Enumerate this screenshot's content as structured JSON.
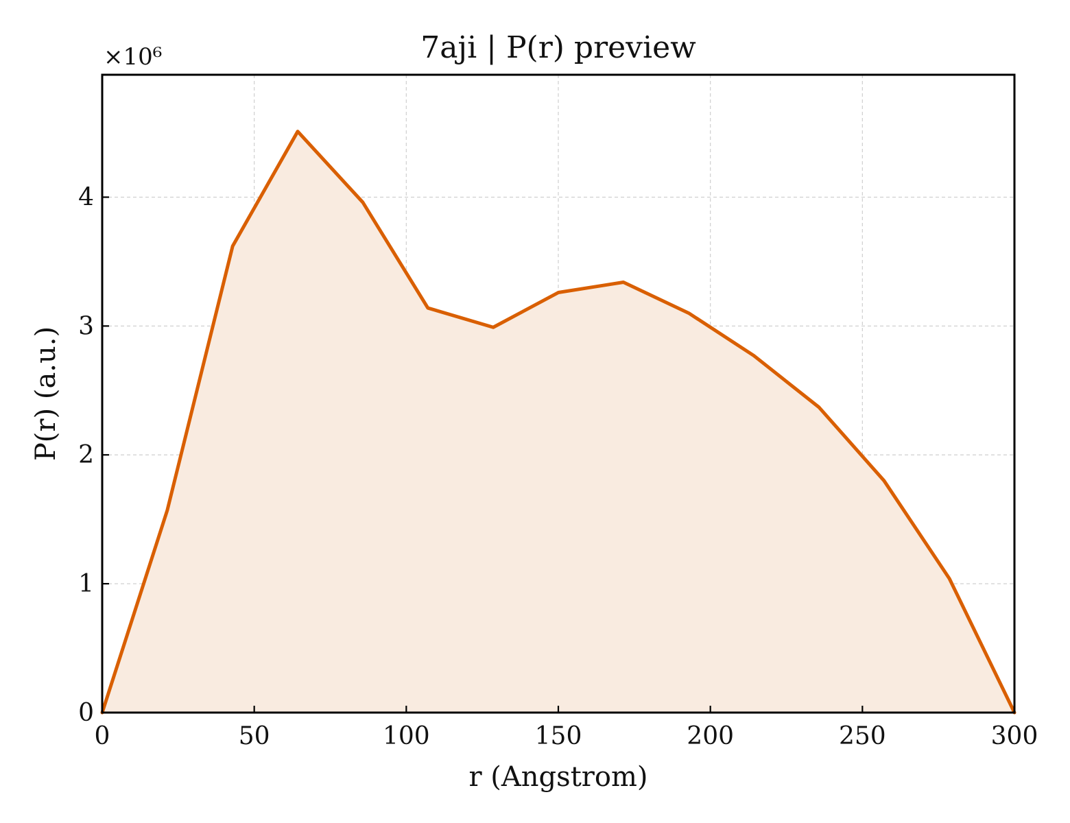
{
  "chart_data": {
    "type": "area",
    "title": "7aji | P(r) preview",
    "xlabel": "r (Angstrom)",
    "ylabel": "P(r) (a.u.)",
    "y_scale_label": "×10⁶",
    "y_scale_factor": 1000000,
    "xlim": [
      0,
      300
    ],
    "ylim": [
      0,
      4.95
    ],
    "x_ticks": [
      0,
      50,
      100,
      150,
      200,
      250,
      300
    ],
    "y_ticks": [
      0,
      1,
      2,
      3,
      4
    ],
    "grid": true,
    "legend": "none",
    "colors": {
      "line": "#d95f02",
      "fill": "#f9ebe0"
    },
    "series": [
      {
        "x": [
          0,
          21.4,
          42.9,
          64.3,
          85.7,
          107.1,
          128.6,
          150.0,
          171.4,
          192.9,
          214.3,
          235.7,
          257.1,
          278.6,
          300
        ],
        "y": [
          0,
          1.57,
          3.62,
          4.51,
          3.96,
          3.14,
          2.99,
          3.26,
          3.34,
          3.1,
          2.77,
          2.37,
          1.8,
          1.04,
          0
        ]
      }
    ]
  }
}
